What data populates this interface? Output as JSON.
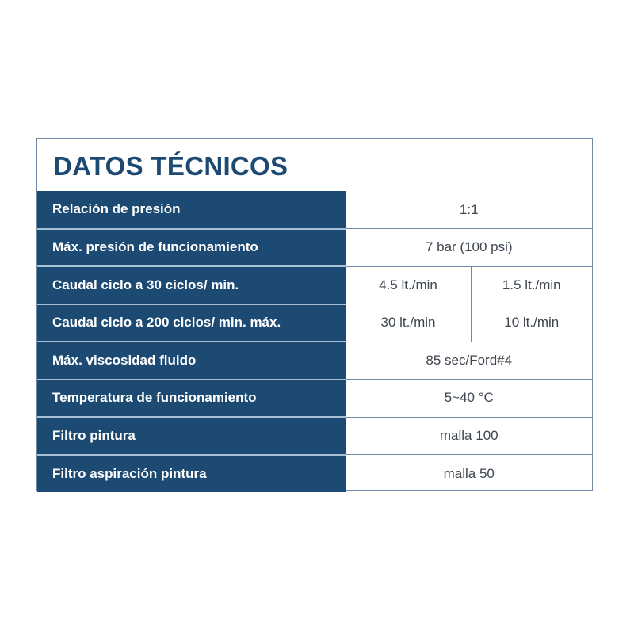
{
  "title": "DATOS TÉCNICOS",
  "colors": {
    "header_bg": "#1d4a72",
    "title_text": "#1c4a72",
    "border": "#6f8aa5"
  },
  "rows": [
    {
      "label": "Relación de presión",
      "values": [
        "1:1"
      ]
    },
    {
      "label": "Máx. presión de funcionamiento",
      "values": [
        "7 bar (100 psi)"
      ]
    },
    {
      "label": "Caudal ciclo a 30 ciclos/ min.",
      "values": [
        "4.5 lt./min",
        "1.5 lt./min"
      ]
    },
    {
      "label": "Caudal ciclo a 200 ciclos/ min. máx.",
      "values": [
        "30 lt./min",
        "10 lt./min"
      ]
    },
    {
      "label": "Máx. viscosidad fluido",
      "values": [
        "85 sec/Ford#4"
      ]
    },
    {
      "label": "Temperatura de funcionamiento",
      "values": [
        "5~40 °C"
      ]
    },
    {
      "label": "Filtro pintura",
      "values": [
        "malla 100"
      ]
    },
    {
      "label": "Filtro aspiración pintura",
      "values": [
        "malla 50"
      ]
    }
  ]
}
